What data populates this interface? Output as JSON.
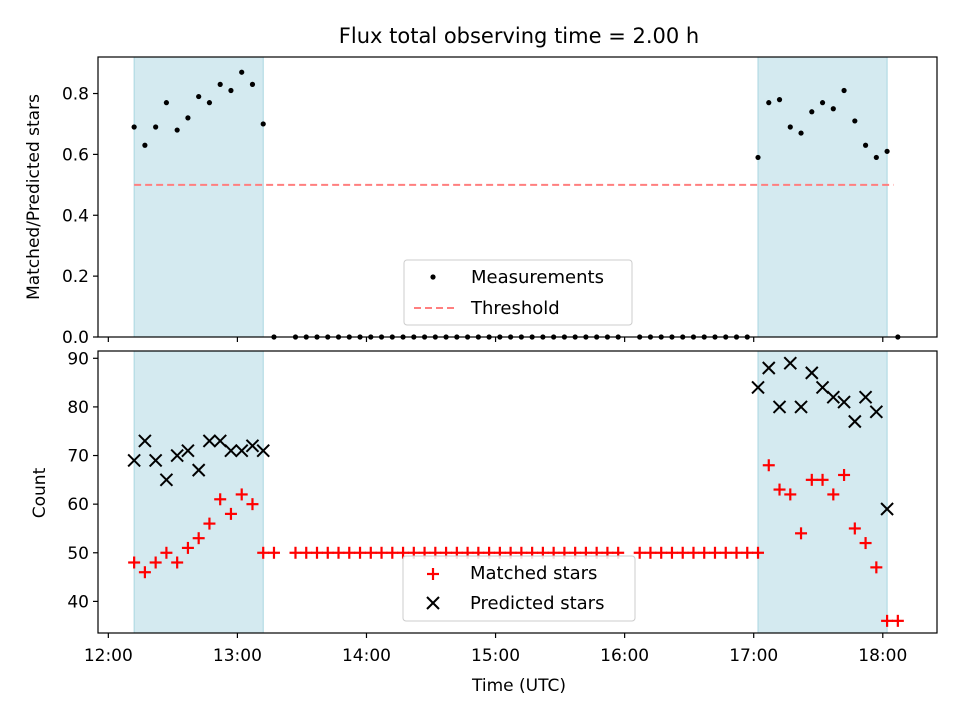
{
  "chart_data": [
    {
      "type": "scatter",
      "title": "Flux total observing time = 2.00 h",
      "xlabel": "",
      "ylabel": "Matched/Predicted stars",
      "ylim": [
        0,
        0.92
      ],
      "yticks": [
        "0.0",
        "0.2",
        "0.4",
        "0.6",
        "0.8"
      ],
      "xlim_hours": [
        11.92,
        18.42
      ],
      "xticks": [
        "12:00",
        "13:00",
        "14:00",
        "15:00",
        "16:00",
        "17:00",
        "18:00"
      ],
      "shaded_intervals": [
        [
          "12:12",
          "13:12"
        ],
        [
          "17:02",
          "18:02"
        ]
      ],
      "shade_color": "#d4eaf0",
      "legend": {
        "position": "bottom-center",
        "entries": [
          "Measurements",
          "Threshold"
        ]
      },
      "threshold": {
        "name": "Threshold",
        "value": 0.5,
        "x_range": [
          "12:12",
          "18:05"
        ],
        "color": "#ff7f7f"
      },
      "series": [
        {
          "name": "Measurements",
          "color": "#000000",
          "marker": "dot",
          "points": [
            [
              "12:12",
              0.69
            ],
            [
              "12:17",
              0.63
            ],
            [
              "12:22",
              0.69
            ],
            [
              "12:27",
              0.77
            ],
            [
              "12:32",
              0.68
            ],
            [
              "12:37",
              0.72
            ],
            [
              "12:42",
              0.79
            ],
            [
              "12:47",
              0.77
            ],
            [
              "12:52",
              0.83
            ],
            [
              "12:57",
              0.81
            ],
            [
              "13:02",
              0.87
            ],
            [
              "13:07",
              0.83
            ],
            [
              "13:12",
              0.7
            ],
            [
              "13:17",
              0.0
            ],
            [
              "13:27",
              0.0
            ],
            [
              "13:32",
              0.0
            ],
            [
              "13:37",
              0.0
            ],
            [
              "13:42",
              0.0
            ],
            [
              "13:47",
              0.0
            ],
            [
              "13:52",
              0.0
            ],
            [
              "13:57",
              0.0
            ],
            [
              "14:02",
              0.0
            ],
            [
              "14:07",
              0.0
            ],
            [
              "14:12",
              0.0
            ],
            [
              "14:17",
              0.0
            ],
            [
              "14:22",
              0.0
            ],
            [
              "14:27",
              0.0
            ],
            [
              "14:32",
              0.0
            ],
            [
              "14:37",
              0.0
            ],
            [
              "14:42",
              0.0
            ],
            [
              "14:47",
              0.0
            ],
            [
              "14:52",
              0.0
            ],
            [
              "14:57",
              0.0
            ],
            [
              "15:02",
              0.0
            ],
            [
              "15:07",
              0.0
            ],
            [
              "15:12",
              0.0
            ],
            [
              "15:17",
              0.0
            ],
            [
              "15:22",
              0.0
            ],
            [
              "15:27",
              0.0
            ],
            [
              "15:32",
              0.0
            ],
            [
              "15:37",
              0.0
            ],
            [
              "15:42",
              0.0
            ],
            [
              "15:47",
              0.0
            ],
            [
              "15:52",
              0.0
            ],
            [
              "15:57",
              0.0
            ],
            [
              "16:07",
              0.0
            ],
            [
              "16:12",
              0.0
            ],
            [
              "16:17",
              0.0
            ],
            [
              "16:22",
              0.0
            ],
            [
              "16:27",
              0.0
            ],
            [
              "16:32",
              0.0
            ],
            [
              "16:37",
              0.0
            ],
            [
              "16:42",
              0.0
            ],
            [
              "16:47",
              0.0
            ],
            [
              "16:52",
              0.0
            ],
            [
              "16:57",
              0.0
            ],
            [
              "17:02",
              0.59
            ],
            [
              "17:07",
              0.77
            ],
            [
              "17:12",
              0.78
            ],
            [
              "17:17",
              0.69
            ],
            [
              "17:22",
              0.67
            ],
            [
              "17:27",
              0.74
            ],
            [
              "17:32",
              0.77
            ],
            [
              "17:37",
              0.75
            ],
            [
              "17:42",
              0.81
            ],
            [
              "17:47",
              0.71
            ],
            [
              "17:52",
              0.63
            ],
            [
              "17:57",
              0.59
            ],
            [
              "18:02",
              0.61
            ],
            [
              "18:07",
              0.0
            ]
          ]
        }
      ]
    },
    {
      "type": "scatter",
      "title": "",
      "xlabel": "Time (UTC)",
      "ylabel": "Count",
      "ylim": [
        33.5,
        91.5
      ],
      "yticks": [
        "40",
        "50",
        "60",
        "70",
        "80",
        "90"
      ],
      "xlim_hours": [
        11.92,
        18.42
      ],
      "xticks": [
        "12:00",
        "13:00",
        "14:00",
        "15:00",
        "16:00",
        "17:00",
        "18:00"
      ],
      "shaded_intervals": [
        [
          "12:12",
          "13:12"
        ],
        [
          "17:02",
          "18:02"
        ]
      ],
      "shade_color": "#d4eaf0",
      "legend": {
        "position": "bottom-center",
        "entries": [
          "Matched stars",
          "Predicted stars"
        ]
      },
      "series": [
        {
          "name": "Matched stars",
          "color": "#ff0000",
          "marker": "plus",
          "points": [
            [
              "12:12",
              48
            ],
            [
              "12:17",
              46
            ],
            [
              "12:22",
              48
            ],
            [
              "12:27",
              50
            ],
            [
              "12:32",
              48
            ],
            [
              "12:37",
              51
            ],
            [
              "12:42",
              53
            ],
            [
              "12:47",
              56
            ],
            [
              "12:52",
              61
            ],
            [
              "12:57",
              58
            ],
            [
              "13:02",
              62
            ],
            [
              "13:07",
              60
            ],
            [
              "13:12",
              50
            ],
            [
              "13:17",
              50
            ],
            [
              "13:27",
              50
            ],
            [
              "13:32",
              50
            ],
            [
              "13:37",
              50
            ],
            [
              "13:42",
              50
            ],
            [
              "13:47",
              50
            ],
            [
              "13:52",
              50
            ],
            [
              "13:57",
              50
            ],
            [
              "14:02",
              50
            ],
            [
              "14:07",
              50
            ],
            [
              "14:12",
              50
            ],
            [
              "14:17",
              50
            ],
            [
              "14:22",
              50
            ],
            [
              "14:27",
              50
            ],
            [
              "14:32",
              50
            ],
            [
              "14:37",
              50
            ],
            [
              "14:42",
              50
            ],
            [
              "14:47",
              50
            ],
            [
              "14:52",
              50
            ],
            [
              "14:57",
              50
            ],
            [
              "15:02",
              50
            ],
            [
              "15:07",
              50
            ],
            [
              "15:12",
              50
            ],
            [
              "15:17",
              50
            ],
            [
              "15:22",
              50
            ],
            [
              "15:27",
              50
            ],
            [
              "15:32",
              50
            ],
            [
              "15:37",
              50
            ],
            [
              "15:42",
              50
            ],
            [
              "15:47",
              50
            ],
            [
              "15:52",
              50
            ],
            [
              "15:57",
              50
            ],
            [
              "16:07",
              50
            ],
            [
              "16:12",
              50
            ],
            [
              "16:17",
              50
            ],
            [
              "16:22",
              50
            ],
            [
              "16:27",
              50
            ],
            [
              "16:32",
              50
            ],
            [
              "16:37",
              50
            ],
            [
              "16:42",
              50
            ],
            [
              "16:47",
              50
            ],
            [
              "16:52",
              50
            ],
            [
              "16:57",
              50
            ],
            [
              "17:02",
              50
            ],
            [
              "17:07",
              68
            ],
            [
              "17:12",
              63
            ],
            [
              "17:17",
              62
            ],
            [
              "17:22",
              54
            ],
            [
              "17:27",
              65
            ],
            [
              "17:32",
              65
            ],
            [
              "17:37",
              62
            ],
            [
              "17:42",
              66
            ],
            [
              "17:47",
              55
            ],
            [
              "17:52",
              52
            ],
            [
              "17:57",
              47
            ],
            [
              "18:02",
              36
            ],
            [
              "18:07",
              36
            ]
          ]
        },
        {
          "name": "Predicted stars",
          "color": "#000000",
          "marker": "x",
          "points": [
            [
              "12:12",
              69
            ],
            [
              "12:17",
              73
            ],
            [
              "12:22",
              69
            ],
            [
              "12:27",
              65
            ],
            [
              "12:32",
              70
            ],
            [
              "12:37",
              71
            ],
            [
              "12:42",
              67
            ],
            [
              "12:47",
              73
            ],
            [
              "12:52",
              73
            ],
            [
              "12:57",
              71
            ],
            [
              "13:02",
              71
            ],
            [
              "13:07",
              72
            ],
            [
              "13:12",
              71
            ],
            [
              "17:02",
              84
            ],
            [
              "17:07",
              88
            ],
            [
              "17:12",
              80
            ],
            [
              "17:17",
              89
            ],
            [
              "17:22",
              80
            ],
            [
              "17:27",
              87
            ],
            [
              "17:32",
              84
            ],
            [
              "17:37",
              82
            ],
            [
              "17:42",
              81
            ],
            [
              "17:47",
              77
            ],
            [
              "17:52",
              82
            ],
            [
              "17:57",
              79
            ],
            [
              "18:02",
              59
            ]
          ]
        }
      ]
    }
  ]
}
